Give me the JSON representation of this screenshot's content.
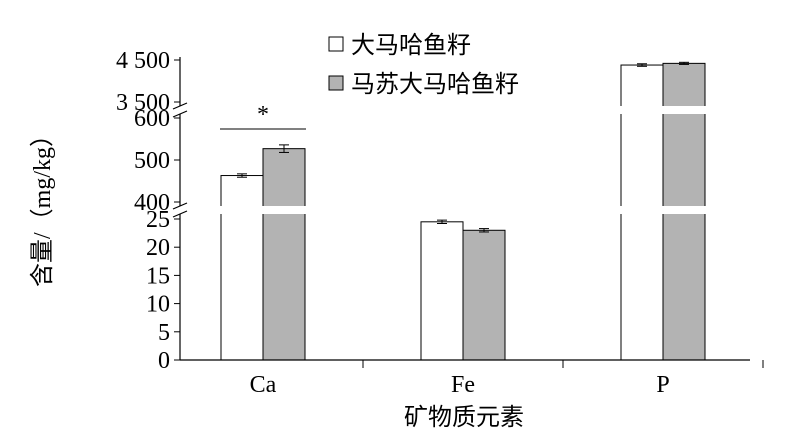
{
  "chart_data": {
    "type": "bar",
    "categories": [
      "Ca",
      "Fe",
      "P"
    ],
    "series": [
      {
        "name": "大马哈鱼籽",
        "values": [
          463,
          24.5,
          4380
        ],
        "errors": [
          4,
          0.3,
          30
        ],
        "color": "#ffffff"
      },
      {
        "name": "马苏大马哈鱼籽",
        "values": [
          527,
          23.0,
          4420
        ],
        "errors": [
          9,
          0.3,
          25
        ],
        "color": "#b3b3b3"
      }
    ],
    "xlabel": "矿物质元素",
    "ylabel": "含量/（mg/kg）",
    "y_axis_segments": [
      {
        "range": [
          0,
          25
        ],
        "ticks": [
          0,
          5,
          10,
          15,
          20,
          25
        ]
      },
      {
        "range": [
          400,
          600
        ],
        "ticks": [
          400,
          500,
          600
        ]
      },
      {
        "range": [
          3500,
          4500
        ],
        "ticks": [
          3500,
          4500
        ]
      }
    ],
    "tick_labels": {
      "0": "0",
      "5": "5",
      "10": "10",
      "15": "15",
      "20": "20",
      "25": "25",
      "400": "400",
      "500": "500",
      "600": "600",
      "3500": "3 500",
      "4500": "4 500"
    },
    "legend_position": "top-center",
    "annotations": [
      {
        "text": "*",
        "category": "Ca",
        "meaning": "significant difference between series"
      }
    ],
    "axis_break_symbol": "≈"
  }
}
